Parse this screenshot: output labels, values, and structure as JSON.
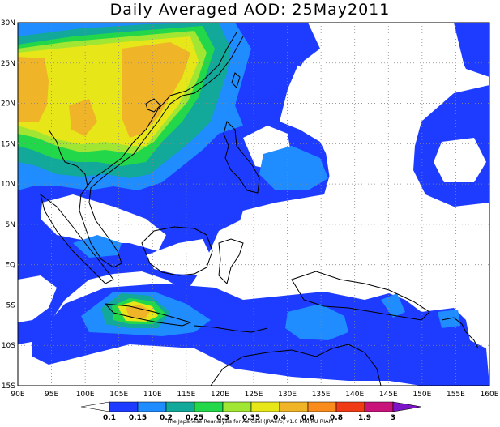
{
  "title": "Daily Averaged AOD: 25May2011",
  "credit": "The Japanese Reanalysis for Aerosol (JRAero) v1.0 MRI/KU RIAM",
  "map": {
    "lon_range": [
      90,
      160
    ],
    "lat_range": [
      -15,
      30
    ],
    "grid_style": "dotted",
    "longitude_labels": [
      "90E",
      "95E",
      "100E",
      "105E",
      "110E",
      "115E",
      "120E",
      "125E",
      "130E",
      "135E",
      "140E",
      "145E",
      "150E",
      "155E",
      "160E"
    ],
    "latitude_labels": [
      "30N",
      "25N",
      "20N",
      "15N",
      "10N",
      "5N",
      "EQ",
      "5S",
      "10S",
      "15S"
    ]
  },
  "colorbar": {
    "levels": [
      "0.1",
      "0.15",
      "0.2",
      "0.25",
      "0.3",
      "0.35",
      "0.4",
      "0.6",
      "0.8",
      "1.9",
      "3"
    ],
    "colors": [
      "#ffffff",
      "#1e3cff",
      "#1f8cff",
      "#12a89a",
      "#22d84a",
      "#a0e632",
      "#e6e619",
      "#f0b428",
      "#fa8c1e",
      "#f03c14",
      "#c8147a",
      "#7d14c8"
    ]
  }
}
